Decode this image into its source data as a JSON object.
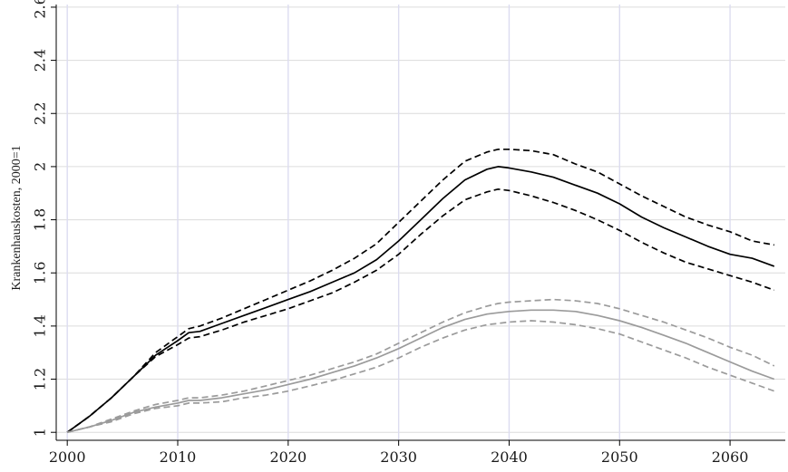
{
  "chart_data": {
    "type": "line",
    "title": "",
    "xlabel": "",
    "ylabel": "Krankenhauskosten, 2000=1",
    "xlim": [
      1999,
      2065
    ],
    "ylim": [
      0.97,
      2.61
    ],
    "x_ticks": [
      2000,
      2010,
      2020,
      2030,
      2040,
      2050,
      2060
    ],
    "y_ticks": [
      1,
      1.2,
      1.4,
      1.6,
      1.8,
      2,
      2.2,
      2.4,
      2.6
    ],
    "y_tick_labels": [
      "1",
      "1.2",
      "1.4",
      "1.6",
      "1.8",
      "2",
      "2.2",
      "2.4",
      "2.6"
    ],
    "grid": true,
    "legend": "none",
    "colors": {
      "black": "#000000",
      "gray": "#9b9b9b",
      "grid": "#dcdcf0",
      "gridline_h": "#dcdcdc"
    },
    "x": [
      2000,
      2002,
      2004,
      2006,
      2008,
      2010,
      2011,
      2012,
      2014,
      2016,
      2018,
      2020,
      2022,
      2024,
      2026,
      2028,
      2030,
      2032,
      2034,
      2036,
      2038,
      2039,
      2040,
      2042,
      2044,
      2046,
      2048,
      2050,
      2052,
      2054,
      2056,
      2058,
      2060,
      2062,
      2064
    ],
    "series": [
      {
        "color": "#000000",
        "dash": "solid",
        "values": [
          1.0,
          1.06,
          1.13,
          1.21,
          1.29,
          1.345,
          1.375,
          1.38,
          1.41,
          1.44,
          1.47,
          1.5,
          1.53,
          1.565,
          1.6,
          1.65,
          1.72,
          1.8,
          1.88,
          1.95,
          1.99,
          2.0,
          1.995,
          1.98,
          1.96,
          1.93,
          1.9,
          1.86,
          1.81,
          1.77,
          1.735,
          1.7,
          1.67,
          1.655,
          1.625
        ]
      },
      {
        "color": "#000000",
        "dash": "dashed",
        "values": [
          1.0,
          1.06,
          1.13,
          1.21,
          1.3,
          1.36,
          1.39,
          1.4,
          1.43,
          1.465,
          1.5,
          1.535,
          1.57,
          1.61,
          1.655,
          1.71,
          1.79,
          1.87,
          1.95,
          2.02,
          2.055,
          2.065,
          2.065,
          2.06,
          2.045,
          2.01,
          1.98,
          1.935,
          1.89,
          1.85,
          1.81,
          1.78,
          1.755,
          1.72,
          1.705
        ]
      },
      {
        "color": "#000000",
        "dash": "dashed",
        "values": [
          1.0,
          1.06,
          1.13,
          1.21,
          1.285,
          1.33,
          1.355,
          1.36,
          1.385,
          1.415,
          1.44,
          1.465,
          1.495,
          1.525,
          1.565,
          1.61,
          1.67,
          1.745,
          1.815,
          1.875,
          1.905,
          1.915,
          1.91,
          1.89,
          1.865,
          1.835,
          1.8,
          1.76,
          1.715,
          1.675,
          1.64,
          1.615,
          1.59,
          1.565,
          1.535
        ]
      },
      {
        "color": "#9b9b9b",
        "dash": "solid",
        "values": [
          1.0,
          1.02,
          1.045,
          1.075,
          1.095,
          1.11,
          1.12,
          1.12,
          1.13,
          1.145,
          1.16,
          1.18,
          1.2,
          1.225,
          1.25,
          1.28,
          1.315,
          1.355,
          1.395,
          1.425,
          1.445,
          1.45,
          1.455,
          1.46,
          1.46,
          1.455,
          1.44,
          1.42,
          1.395,
          1.365,
          1.335,
          1.3,
          1.265,
          1.23,
          1.2
        ]
      },
      {
        "color": "#9b9b9b",
        "dash": "dashed",
        "values": [
          1.0,
          1.02,
          1.05,
          1.08,
          1.105,
          1.12,
          1.13,
          1.13,
          1.14,
          1.155,
          1.175,
          1.195,
          1.215,
          1.24,
          1.265,
          1.295,
          1.335,
          1.375,
          1.415,
          1.45,
          1.475,
          1.485,
          1.49,
          1.495,
          1.5,
          1.495,
          1.485,
          1.465,
          1.44,
          1.415,
          1.385,
          1.355,
          1.32,
          1.29,
          1.25
        ]
      },
      {
        "color": "#9b9b9b",
        "dash": "dashed",
        "values": [
          1.0,
          1.02,
          1.04,
          1.07,
          1.09,
          1.1,
          1.11,
          1.11,
          1.115,
          1.13,
          1.14,
          1.155,
          1.175,
          1.195,
          1.22,
          1.245,
          1.28,
          1.32,
          1.355,
          1.385,
          1.405,
          1.41,
          1.415,
          1.42,
          1.415,
          1.405,
          1.39,
          1.37,
          1.34,
          1.31,
          1.28,
          1.245,
          1.215,
          1.185,
          1.155
        ]
      }
    ]
  }
}
